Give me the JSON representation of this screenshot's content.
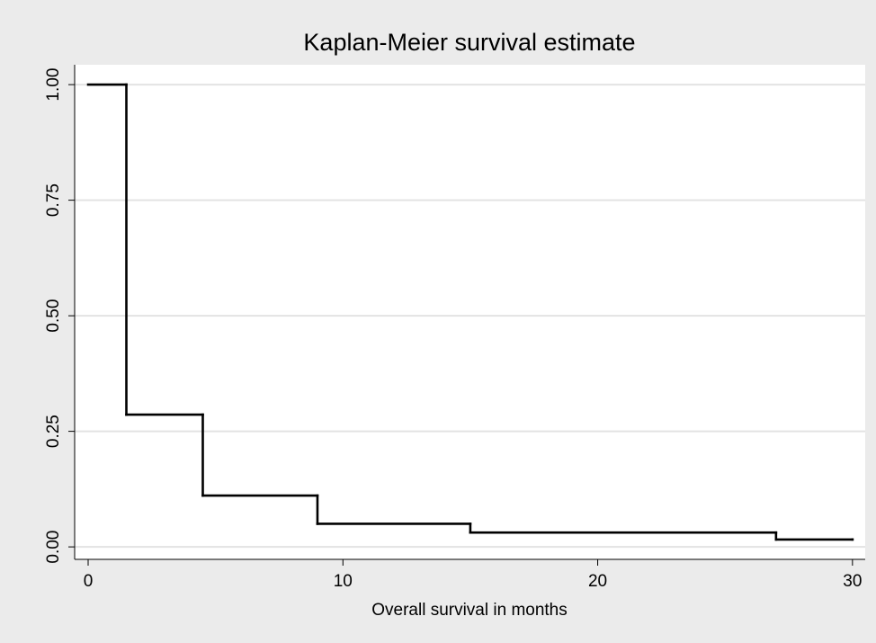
{
  "chart_data": {
    "type": "step",
    "title": "Kaplan-Meier survival estimate",
    "x_label": "Overall survival in months",
    "x": [
      0,
      1.5,
      4.5,
      9,
      15,
      27,
      30
    ],
    "values": [
      1,
      0.286,
      0.111,
      0.05,
      0.031,
      0.016,
      0.016
    ],
    "color": "#000000",
    "xlim": [
      -0.53,
      30.5
    ],
    "ylim": [
      -0.027,
      1.043
    ],
    "xticks": [
      0,
      10,
      20,
      30
    ],
    "yticks": [
      {
        "value": 0,
        "label": "0.00"
      },
      {
        "value": 0.25,
        "label": "0.25"
      },
      {
        "value": 0.5,
        "label": "0.50"
      },
      {
        "value": 0.75,
        "label": "0.75"
      },
      {
        "value": 1,
        "label": "1.00"
      }
    ],
    "grid": true
  }
}
